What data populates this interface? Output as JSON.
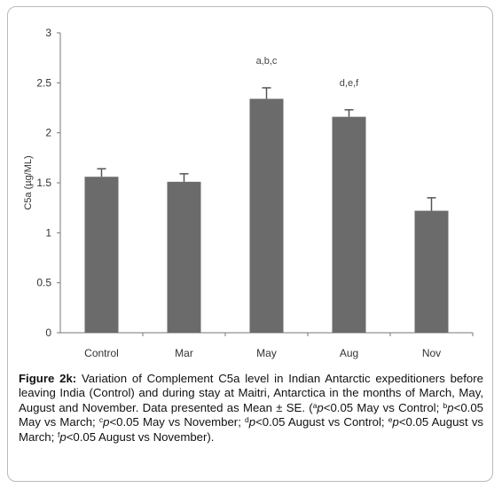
{
  "chart_data": {
    "type": "bar",
    "categories": [
      "Control",
      "Mar",
      "May",
      "Aug",
      "Nov"
    ],
    "values": [
      1.56,
      1.51,
      2.34,
      2.16,
      1.22
    ],
    "errors": [
      0.08,
      0.08,
      0.11,
      0.07,
      0.13
    ],
    "annotations": [
      "",
      "",
      "a,b,c",
      "d,e,f",
      ""
    ],
    "ylabel": "C5a (µg/ML)",
    "ylim": [
      0,
      3
    ],
    "yticks": [
      "0",
      "0.5",
      "1",
      "1.5",
      "2",
      "2.5",
      "3"
    ],
    "grid": false,
    "bar_color": "#6b6b6b"
  },
  "caption": {
    "label": "Figure 2k:",
    "text": " Variation of Complement C5a level in Indian Antarctic expeditioners before leaving India (Control) and during stay at Maitri, Antarctica in the months of March, May, August and November. Data presented as Mean ± SE. (",
    "notes": [
      {
        "sup": "a",
        "p": "p",
        "text": "<0.05 May vs Control; "
      },
      {
        "sup": "b",
        "p": "p",
        "text": "<0.05 May vs March; "
      },
      {
        "sup": "c",
        "p": "p",
        "text": "<0.05 May vs November; "
      },
      {
        "sup": "d",
        "p": "p",
        "text": "<0.05 August vs Control; "
      },
      {
        "sup": "e",
        "p": "p",
        "text": "<0.05 August vs March; "
      },
      {
        "sup": "f",
        "p": "p",
        "text": "<0.05 August vs November)."
      }
    ]
  }
}
